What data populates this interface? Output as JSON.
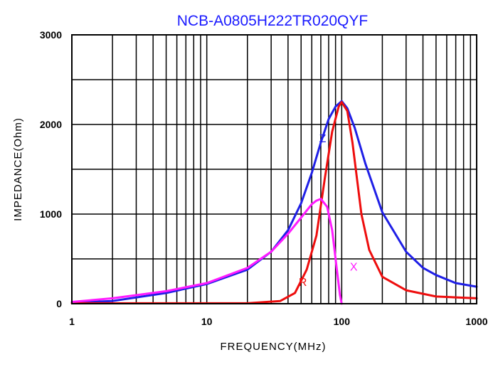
{
  "chart_data": {
    "type": "line",
    "title": "NCB-A0805H222TR020QYF",
    "xlabel": "FREQUENCY(MHz)",
    "ylabel": "IMPEDANCE(Ohm)",
    "x_scale": "log",
    "xlim": [
      1,
      1000
    ],
    "ylim": [
      0,
      3000
    ],
    "x_ticks": [
      1,
      10,
      100,
      1000
    ],
    "x_tick_labels": [
      "1",
      "10",
      "100",
      "1000"
    ],
    "y_ticks": [
      0,
      1000,
      2000,
      3000
    ],
    "y_tick_labels": [
      "0",
      "1000",
      "2000",
      "3000"
    ],
    "grid": true,
    "series": [
      {
        "name": "Z",
        "color": "#1f1fe6",
        "label_at": [
          68,
          1800
        ],
        "points": [
          [
            1,
            10
          ],
          [
            2,
            30
          ],
          [
            5,
            120
          ],
          [
            10,
            220
          ],
          [
            20,
            380
          ],
          [
            30,
            580
          ],
          [
            40,
            820
          ],
          [
            50,
            1120
          ],
          [
            60,
            1460
          ],
          [
            70,
            1800
          ],
          [
            80,
            2060
          ],
          [
            90,
            2200
          ],
          [
            100,
            2260
          ],
          [
            110,
            2180
          ],
          [
            125,
            1960
          ],
          [
            150,
            1560
          ],
          [
            200,
            1020
          ],
          [
            300,
            580
          ],
          [
            400,
            400
          ],
          [
            500,
            320
          ],
          [
            700,
            230
          ],
          [
            1000,
            190
          ]
        ]
      },
      {
        "name": "R",
        "color": "#ee0d0d",
        "label_at": [
          48,
          200
        ],
        "points": [
          [
            1,
            5
          ],
          [
            20,
            5
          ],
          [
            35,
            30
          ],
          [
            45,
            120
          ],
          [
            55,
            380
          ],
          [
            65,
            760
          ],
          [
            75,
            1400
          ],
          [
            85,
            1920
          ],
          [
            95,
            2200
          ],
          [
            100,
            2250
          ],
          [
            110,
            2150
          ],
          [
            120,
            1800
          ],
          [
            140,
            1000
          ],
          [
            160,
            600
          ],
          [
            200,
            300
          ],
          [
            300,
            150
          ],
          [
            500,
            80
          ],
          [
            1000,
            60
          ]
        ]
      },
      {
        "name": "X",
        "color": "#ff1aff",
        "label_at": [
          115,
          370
        ],
        "points": [
          [
            1,
            20
          ],
          [
            2,
            60
          ],
          [
            5,
            140
          ],
          [
            10,
            230
          ],
          [
            20,
            400
          ],
          [
            30,
            580
          ],
          [
            40,
            780
          ],
          [
            50,
            960
          ],
          [
            60,
            1110
          ],
          [
            65,
            1150
          ],
          [
            70,
            1170
          ],
          [
            78,
            1080
          ],
          [
            85,
            820
          ],
          [
            92,
            380
          ],
          [
            97,
            100
          ],
          [
            100,
            0
          ]
        ]
      }
    ]
  }
}
